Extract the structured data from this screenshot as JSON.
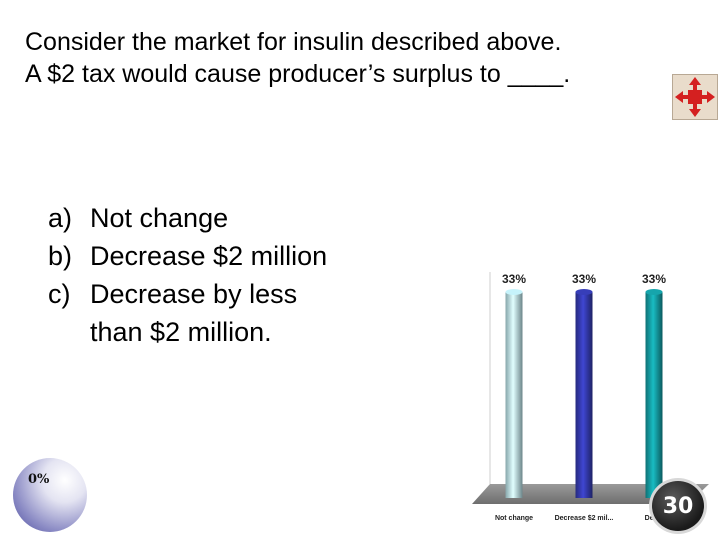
{
  "question": {
    "line1": "Consider the market for insulin described above.",
    "line2": "A $2 tax would cause producer’s surplus to ____."
  },
  "answers": [
    {
      "letter": "a)",
      "text": "Not change"
    },
    {
      "letter": "b)",
      "text": "Decrease $2 million"
    },
    {
      "letter": "c)",
      "text": "Decrease by less than $2 million."
    }
  ],
  "participation_label": "0%",
  "timer_value": "30",
  "tool_icon": "move-arrows-icon",
  "chart_data": {
    "type": "bar",
    "categories": [
      "Not change",
      "Decrease $2 mil...",
      "Dec..."
    ],
    "values": [
      33,
      33,
      33
    ],
    "data_labels": [
      "33%",
      "33%",
      "33%"
    ],
    "colors": [
      "#b4dde4",
      "#3238a8",
      "#14969c"
    ],
    "ylim": [
      0,
      33
    ]
  }
}
